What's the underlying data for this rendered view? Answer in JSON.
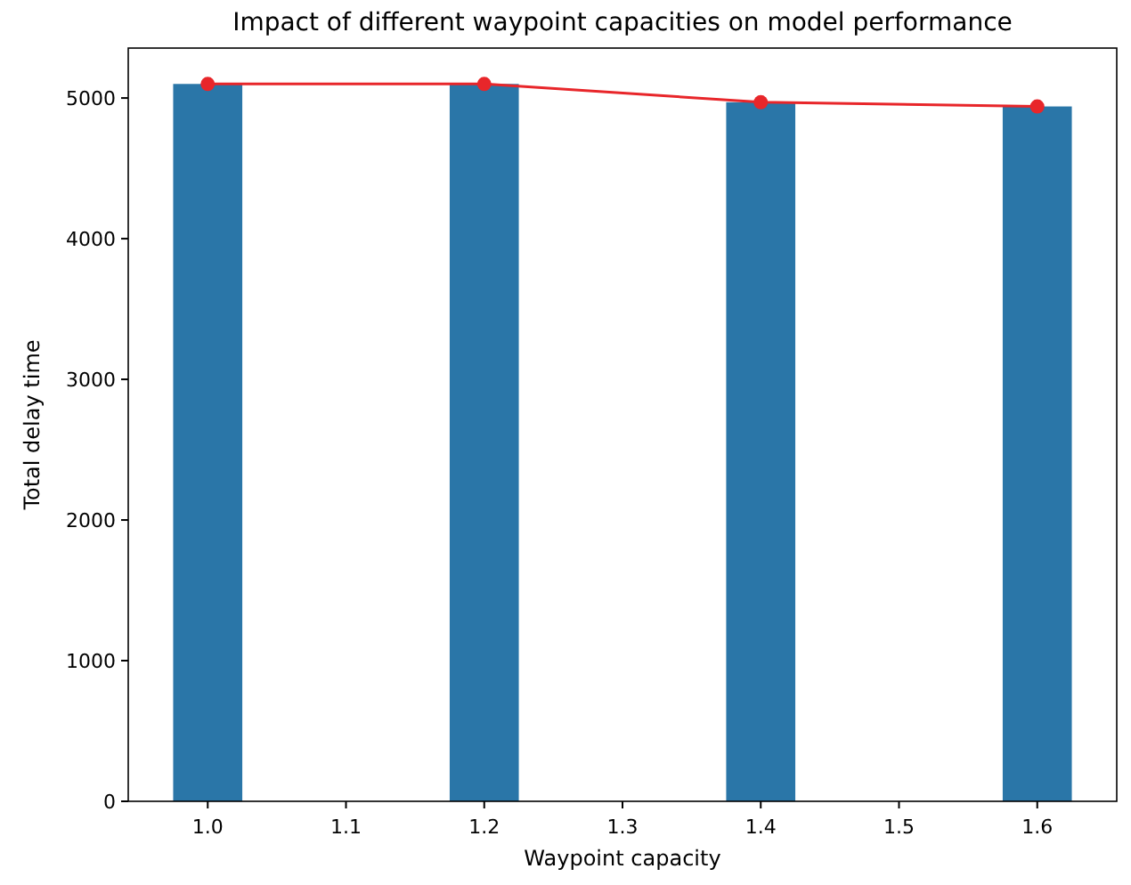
{
  "chart_data": {
    "type": "bar",
    "title": "Impact of different waypoint capacities on model performance",
    "xlabel": "Waypoint capacity",
    "ylabel": "Total delay time",
    "x": [
      1.0,
      1.2,
      1.4,
      1.6
    ],
    "series": [
      {
        "color": "#2a76a8",
        "values": [
          5100,
          5100,
          4970,
          4940
        ]
      },
      {
        "type": "line",
        "color": "#e8262a",
        "marker": "circle",
        "values": [
          5100,
          5100,
          4970,
          4940
        ]
      }
    ],
    "xlim": [
      0.9425,
      1.6575
    ],
    "xticks": [
      {
        "value": 1.0,
        "label": "1.0"
      },
      {
        "value": 1.1,
        "label": "1.1"
      },
      {
        "value": 1.2,
        "label": "1.2"
      },
      {
        "value": 1.3,
        "label": "1.3"
      },
      {
        "value": 1.4,
        "label": "1.4"
      },
      {
        "value": 1.5,
        "label": "1.5"
      },
      {
        "value": 1.6,
        "label": "1.6"
      }
    ],
    "ylim": [
      0,
      5355
    ],
    "yticks": [
      0,
      1000,
      2000,
      3000,
      4000,
      5000
    ],
    "grid": false
  }
}
